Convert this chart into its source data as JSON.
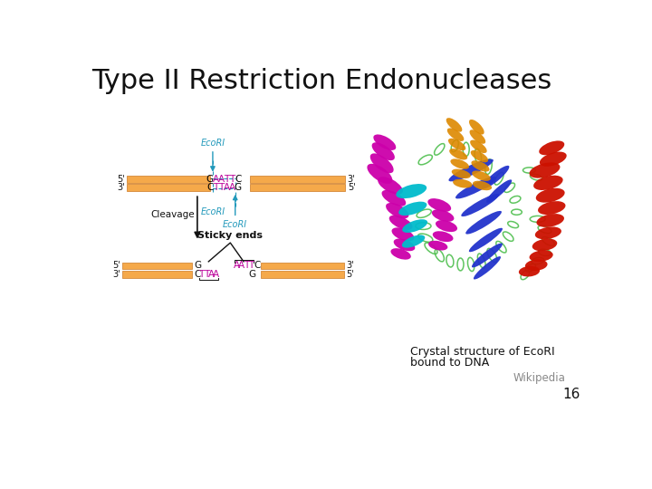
{
  "title": "Type II Restriction Endonucleases",
  "title_fontsize": 22,
  "background_color": "#ffffff",
  "caption_line1": "Crystal structure of EcoRI",
  "caption_line2": "bound to DNA",
  "wikipedia_text": "Wikipedia",
  "slide_number": "16",
  "orange_color": "#F5A94A",
  "orange_edge": "#D4893A",
  "orange_light": "#F5C882",
  "cyan_color": "#2299BB",
  "magenta_color": "#BB0099",
  "black_color": "#111111",
  "gray_color": "#888888",
  "green_protein": "#44BB44",
  "blue_protein": "#2233CC",
  "red_protein": "#CC1100",
  "magenta_protein": "#CC00AA",
  "cyan_protein": "#00BBCC",
  "orange_protein": "#DD8800"
}
